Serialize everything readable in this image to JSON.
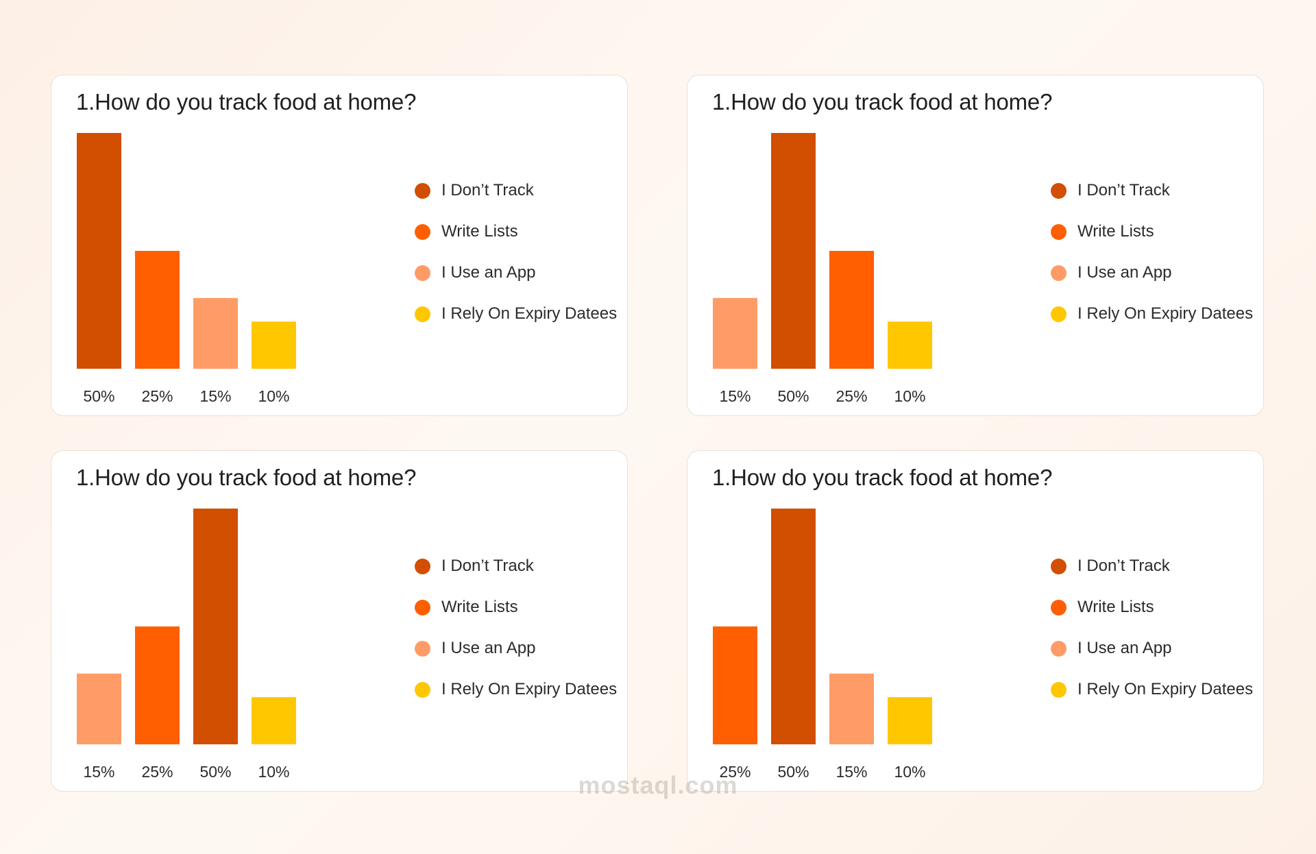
{
  "colors": {
    "I Don’t Track": "#d24e01",
    "Write Lists": "#ff5f00",
    "I Use an App": "#ff9b66",
    "I Rely On Expiry Datees": "#ffc700"
  },
  "legend_items": [
    "I Don’t Track",
    "Write Lists",
    "I Use an App",
    "I Rely On Expiry Datees"
  ],
  "watermark": "mostaql.com",
  "chart_data": [
    {
      "type": "bar",
      "title": "1.How do you track food at home?",
      "categories": [
        "I Don’t Track",
        "Write Lists",
        "I Use an App",
        "I Rely On Expiry Datees"
      ],
      "values": [
        50,
        25,
        15,
        10
      ],
      "labels": [
        "50%",
        "25%",
        "15%",
        "10%"
      ],
      "ylim": [
        0,
        50
      ],
      "grid": false,
      "legend": "right"
    },
    {
      "type": "bar",
      "title": "1.How do you track food at home?",
      "categories": [
        "I Use an App",
        "I Don’t Track",
        "Write Lists",
        "I Rely On Expiry Datees"
      ],
      "values": [
        15,
        50,
        25,
        10
      ],
      "labels": [
        "15%",
        "50%",
        "25%",
        "10%"
      ],
      "ylim": [
        0,
        50
      ],
      "grid": false,
      "legend": "right"
    },
    {
      "type": "bar",
      "title": "1.How do you track food at home?",
      "categories": [
        "I Use an App",
        "Write Lists",
        "I Don’t Track",
        "I Rely On Expiry Datees"
      ],
      "values": [
        15,
        25,
        50,
        10
      ],
      "labels": [
        "15%",
        "25%",
        "50%",
        "10%"
      ],
      "ylim": [
        0,
        50
      ],
      "grid": false,
      "legend": "right"
    },
    {
      "type": "bar",
      "title": "1.How do you track food at home?",
      "categories": [
        "Write Lists",
        "I Don’t Track",
        "I Use an App",
        "I Rely On Expiry Datees"
      ],
      "values": [
        25,
        50,
        15,
        10
      ],
      "labels": [
        "25%",
        "50%",
        "15%",
        "10%"
      ],
      "ylim": [
        0,
        50
      ],
      "grid": false,
      "legend": "right"
    }
  ]
}
